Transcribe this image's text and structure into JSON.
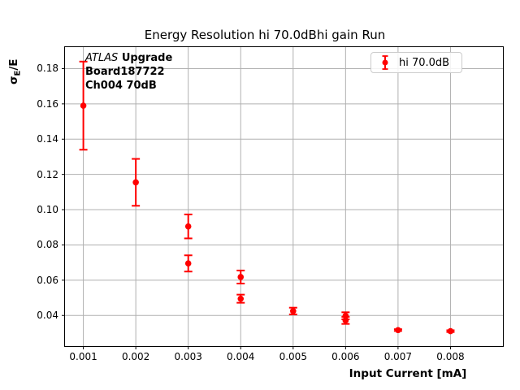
{
  "chart_data": {
    "type": "scatter",
    "title": "Energy Resolution hi 70.0dBhi gain Run",
    "xlabel": "Input Current [mA]",
    "ylabel": "σE/E",
    "ylabel_parts": {
      "sigma": "σ",
      "sub": "E",
      "rest": "/E"
    },
    "xlim": [
      0.00065,
      0.009
    ],
    "ylim": [
      0.0226,
      0.1922
    ],
    "x_ticks": [
      0.001,
      0.002,
      0.003,
      0.004,
      0.005,
      0.006,
      0.007,
      0.008
    ],
    "x_tick_labels": [
      "0.001",
      "0.002",
      "0.003",
      "0.004",
      "0.005",
      "0.006",
      "0.007",
      "0.008"
    ],
    "y_ticks": [
      0.04,
      0.06,
      0.08,
      0.1,
      0.12,
      0.14,
      0.16,
      0.18
    ],
    "y_tick_labels": [
      "0.04",
      "0.06",
      "0.08",
      "0.10",
      "0.12",
      "0.14",
      "0.16",
      "0.18"
    ],
    "grid": true,
    "grid_color": "#b0b0b0",
    "axis_color": "#000000",
    "legend_position": "upper right",
    "series": [
      {
        "name": "hi 70.0dB",
        "color": "#ff0000",
        "marker": "circle",
        "points": [
          {
            "x": 0.001,
            "y": 0.159,
            "yerr": 0.025
          },
          {
            "x": 0.002,
            "y": 0.1155,
            "yerr": 0.0133
          },
          {
            "x": 0.003,
            "y": 0.0905,
            "yerr": 0.0068
          },
          {
            "x": 0.003,
            "y": 0.0695,
            "yerr": 0.0046
          },
          {
            "x": 0.004,
            "y": 0.0618,
            "yerr": 0.0037
          },
          {
            "x": 0.004,
            "y": 0.0495,
            "yerr": 0.0023
          },
          {
            "x": 0.005,
            "y": 0.0425,
            "yerr": 0.0019
          },
          {
            "x": 0.006,
            "y": 0.0398,
            "yerr": 0.002
          },
          {
            "x": 0.006,
            "y": 0.0372,
            "yerr": 0.002
          },
          {
            "x": 0.007,
            "y": 0.0317,
            "yerr": 0.0005
          },
          {
            "x": 0.008,
            "y": 0.0311,
            "yerr": 0.0005
          }
        ]
      }
    ],
    "annotation": {
      "line1_italic": "ATLAS",
      "line1_bold": "Upgrade",
      "line2": "Board187722",
      "line3": "Ch004 70dB"
    }
  }
}
